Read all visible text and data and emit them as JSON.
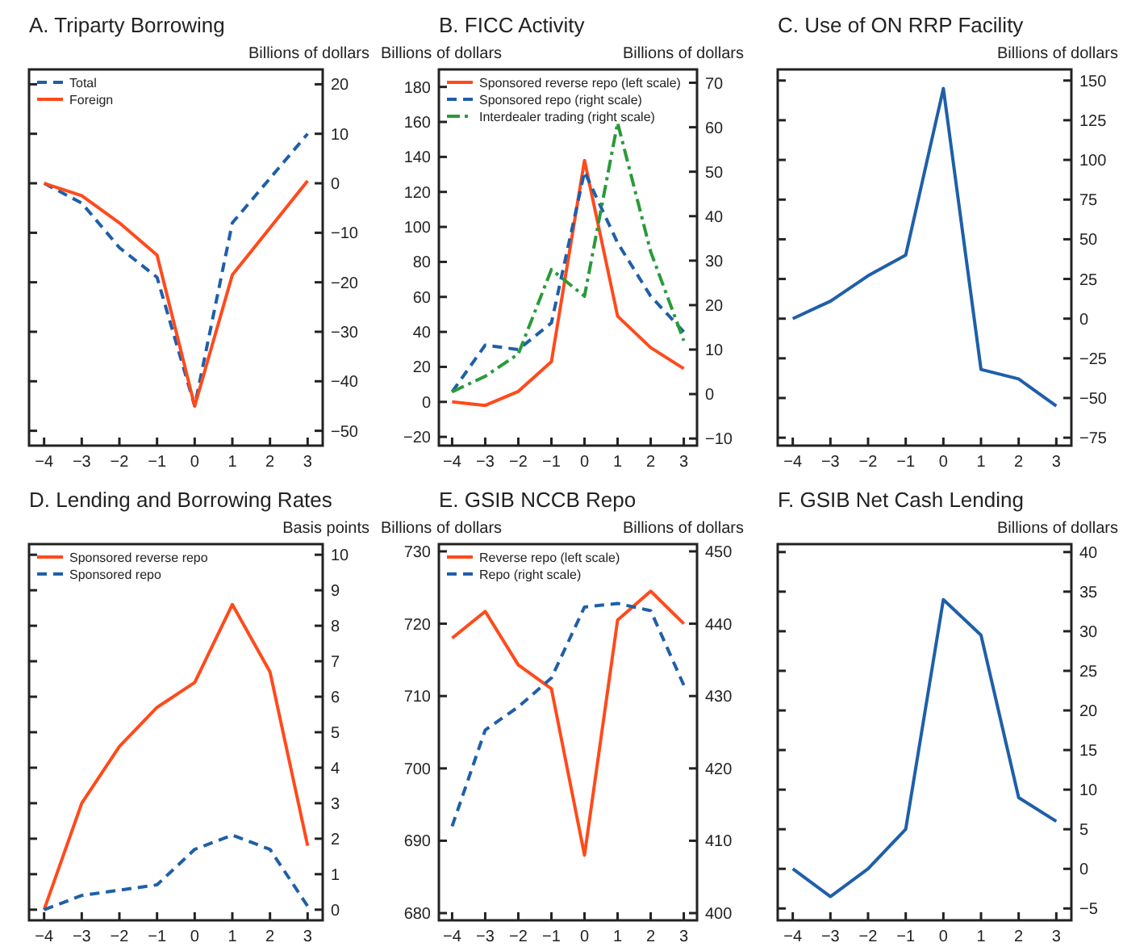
{
  "chart_data": [
    {
      "type": "line",
      "title": "A. Triparty Borrowing",
      "y2label": "Billions of dollars",
      "x": [
        -4,
        -3,
        -2,
        -1,
        0,
        1,
        2,
        3
      ],
      "xlim": [
        -4.4,
        3.4
      ],
      "xticks": [
        -4,
        -3,
        -2,
        -1,
        0,
        1,
        2,
        3
      ],
      "y2lim": [
        -53,
        23
      ],
      "y2ticks": [
        -50,
        -40,
        -30,
        -20,
        -10,
        0,
        10,
        20
      ],
      "legend": "top left",
      "series": [
        {
          "name": "Total",
          "color": "#1f5fa8",
          "line_style": "dashed",
          "axis": "y2",
          "values": [
            0,
            -4,
            -13,
            -19,
            -45,
            -8,
            1,
            10
          ]
        },
        {
          "name": "Foreign",
          "color": "#ff4a1c",
          "line_style": "solid",
          "axis": "y2",
          "values": [
            0,
            -2.5,
            -8,
            -14.5,
            -45,
            -18.5,
            -9,
            0.5
          ]
        }
      ]
    },
    {
      "type": "line",
      "title": "B. FICC Activity",
      "ylabel": "Billions of dollars",
      "y2label": "Billions of dollars",
      "x": [
        -4,
        -3,
        -2,
        -1,
        0,
        1,
        2,
        3
      ],
      "xlim": [
        -4.4,
        3.4
      ],
      "xticks": [
        -4,
        -3,
        -2,
        -1,
        0,
        1,
        2,
        3
      ],
      "ylim": [
        -25,
        190
      ],
      "yticks": [
        -20,
        0,
        20,
        40,
        60,
        80,
        100,
        120,
        140,
        160,
        180
      ],
      "y2lim": [
        -11.6,
        73
      ],
      "y2ticks": [
        -10,
        0,
        10,
        20,
        30,
        40,
        50,
        60,
        70
      ],
      "legend": "top left",
      "series": [
        {
          "name": "Sponsored reverse repo (left scale)",
          "color": "#ff4a1c",
          "line_style": "solid",
          "values": [
            0,
            -2,
            6,
            23,
            138,
            49,
            31,
            19
          ]
        },
        {
          "name": "Sponsored repo (right scale)",
          "color": "#1f5fa8",
          "line_style": "dashed",
          "axis": "y2",
          "values": [
            0.5,
            11,
            10,
            16,
            50,
            34,
            22,
            14
          ]
        },
        {
          "name": "Interdealer trading (right scale)",
          "color": "#2a9a3a",
          "line_style": "dashdot",
          "axis": "y2",
          "values": [
            0.5,
            4,
            9,
            28,
            22,
            61,
            32,
            12
          ]
        }
      ]
    },
    {
      "type": "line",
      "title": "C. Use of ON RRP Facility",
      "y2label": "Billions of dollars",
      "x": [
        -4,
        -3,
        -2,
        -1,
        0,
        1,
        2,
        3
      ],
      "xlim": [
        -4.4,
        3.4
      ],
      "xticks": [
        -4,
        -3,
        -2,
        -1,
        0,
        1,
        2,
        3
      ],
      "y2lim": [
        -80,
        157
      ],
      "y2ticks": [
        -75,
        -50,
        -25,
        0,
        25,
        50,
        75,
        100,
        125,
        150
      ],
      "series": [
        {
          "color": "#1f5fa8",
          "line_style": "solid",
          "axis": "y2",
          "values": [
            0,
            11,
            27,
            40,
            145,
            -32,
            -38,
            -55
          ]
        }
      ]
    },
    {
      "type": "line",
      "title": "D. Lending and Borrowing Rates",
      "y2label": "Basis points",
      "x": [
        -4,
        -3,
        -2,
        -1,
        0,
        1,
        2,
        3
      ],
      "xlim": [
        -4.4,
        3.4
      ],
      "xticks": [
        -4,
        -3,
        -2,
        -1,
        0,
        1,
        2,
        3
      ],
      "y2lim": [
        -0.3,
        10.3
      ],
      "y2ticks": [
        0,
        1,
        2,
        3,
        4,
        5,
        6,
        7,
        8,
        9,
        10
      ],
      "legend": "top left",
      "series": [
        {
          "name": "Sponsored reverse repo",
          "color": "#ff4a1c",
          "line_style": "solid",
          "axis": "y2",
          "values": [
            0,
            3,
            4.6,
            5.7,
            6.4,
            8.6,
            6.7,
            1.8
          ]
        },
        {
          "name": "Sponsored repo",
          "color": "#1f5fa8",
          "line_style": "dashed",
          "axis": "y2",
          "values": [
            0,
            0.4,
            0.55,
            0.7,
            1.7,
            2.1,
            1.7,
            0.1
          ]
        }
      ]
    },
    {
      "type": "line",
      "title": "E. GSIB NCCB Repo",
      "ylabel": "Billions of dollars",
      "y2label": "Billions of dollars",
      "x": [
        -4,
        -3,
        -2,
        -1,
        0,
        1,
        2,
        3
      ],
      "xlim": [
        -4.4,
        3.4
      ],
      "xticks": [
        -4,
        -3,
        -2,
        -1,
        0,
        1,
        2,
        3
      ],
      "ylim": [
        679,
        731
      ],
      "yticks": [
        680,
        690,
        700,
        710,
        720,
        730
      ],
      "y2lim": [
        399,
        451
      ],
      "y2ticks": [
        400,
        410,
        420,
        430,
        440,
        450
      ],
      "legend": "top left",
      "series": [
        {
          "name": "Reverse repo (left scale)",
          "color": "#ff4a1c",
          "line_style": "solid",
          "values": [
            718,
            721.7,
            714.3,
            711,
            688,
            720.5,
            724.5,
            720
          ]
        },
        {
          "name": "Repo (right scale)",
          "color": "#1f5fa8",
          "line_style": "dashed",
          "axis": "y2",
          "values": [
            412,
            425.3,
            428.5,
            432.5,
            442.3,
            442.8,
            441.8,
            431.5
          ]
        }
      ]
    },
    {
      "type": "line",
      "title": "F. GSIB Net Cash Lending",
      "y2label": "Billions of dollars",
      "x": [
        -4,
        -3,
        -2,
        -1,
        0,
        1,
        2,
        3
      ],
      "xlim": [
        -4.4,
        3.4
      ],
      "xticks": [
        -4,
        -3,
        -2,
        -1,
        0,
        1,
        2,
        3
      ],
      "y2lim": [
        -6.5,
        41
      ],
      "y2ticks": [
        -5,
        0,
        5,
        10,
        15,
        20,
        25,
        30,
        35,
        40
      ],
      "series": [
        {
          "color": "#1f5fa8",
          "line_style": "solid",
          "axis": "y2",
          "values": [
            0,
            -3.5,
            0,
            5,
            34,
            29.5,
            9,
            6
          ]
        }
      ]
    }
  ]
}
